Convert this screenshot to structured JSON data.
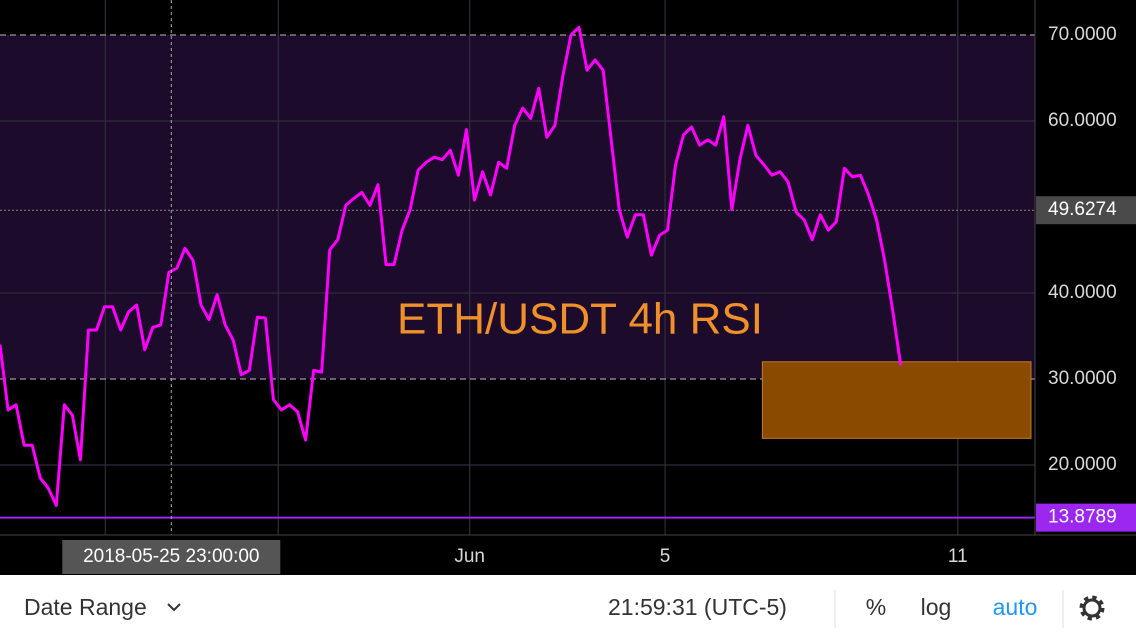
{
  "chart_data": {
    "type": "line",
    "title": "ETH/USDT 4h RSI",
    "series": [
      {
        "name": "RSI",
        "color": "#ff00ff",
        "values": [
          34.0,
          26.4,
          27.0,
          22.3,
          22.3,
          18.5,
          17.3,
          15.3,
          27.0,
          25.8,
          20.6,
          35.7,
          35.7,
          38.4,
          38.4,
          35.7,
          37.8,
          38.6,
          33.4,
          36.0,
          36.3,
          42.4,
          42.9,
          45.2,
          43.8,
          38.6,
          36.9,
          39.8,
          36.3,
          34.5,
          30.5,
          31.0,
          37.2,
          37.1,
          27.6,
          26.4,
          27.0,
          26.2,
          22.9,
          31.0,
          30.8,
          45.0,
          46.2,
          50.2,
          51.0,
          51.7,
          50.2,
          52.6,
          43.3,
          43.3,
          47.3,
          49.7,
          54.3,
          55.2,
          55.8,
          55.5,
          56.6,
          53.7,
          59.0,
          50.8,
          54.1,
          51.4,
          55.2,
          54.5,
          59.5,
          61.5,
          60.3,
          63.8,
          58.1,
          59.5,
          65.3,
          70.0,
          70.9,
          65.9,
          67.1,
          65.9,
          57.8,
          49.7,
          46.5,
          49.1,
          49.1,
          44.4,
          46.7,
          47.3,
          54.9,
          58.4,
          59.3,
          57.2,
          57.8,
          57.2,
          60.5,
          49.7,
          55.5,
          59.5,
          56.0,
          54.9,
          53.7,
          54.1,
          52.9,
          49.4,
          48.5,
          46.2,
          49.1,
          47.3,
          48.3,
          54.5,
          53.5,
          53.7,
          51.4,
          48.5,
          43.8,
          38.0,
          31.6
        ]
      }
    ],
    "xlim": [
      0,
      128.7
    ],
    "xticks": [
      {
        "value": 13.1,
        "label": null
      },
      {
        "value": 34.6,
        "label": null
      },
      {
        "value": 58.4,
        "label": "Jun"
      },
      {
        "value": 82.7,
        "label": "5"
      },
      {
        "value": 119.1,
        "label": "11"
      }
    ],
    "ylim": [
      11.86,
      74.07
    ],
    "yticks": [
      {
        "value": 70,
        "label": "70.0000"
      },
      {
        "value": 60,
        "label": "60.0000"
      },
      {
        "value": 40,
        "label": "40.0000"
      },
      {
        "value": 30,
        "label": "30.0000"
      },
      {
        "value": 20,
        "label": "20.0000"
      }
    ],
    "band": [
      30,
      70
    ],
    "grid": true,
    "price_lines": [
      {
        "value": 49.6274,
        "color": "#4a4a4a"
      },
      {
        "value": 13.8789,
        "color": "#9c27f0"
      }
    ],
    "crosshair": {
      "x": 21.3,
      "label": "2018-05-25 23:00:00"
    },
    "highlight_box": {
      "x": [
        94.8,
        128.2
      ],
      "y": [
        23.1,
        32.0
      ],
      "color": "#8a4a00"
    }
  },
  "toolbar": {
    "date_range": "Date Range",
    "clock": "21:59:31 (UTC-5)",
    "percent": "%",
    "log": "log",
    "auto": "auto"
  }
}
